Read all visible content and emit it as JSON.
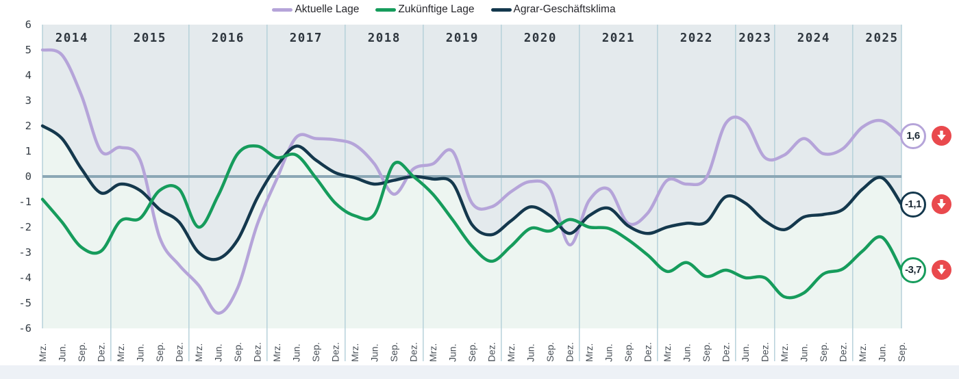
{
  "legend": {
    "items": [
      {
        "label": "Aktuelle Lage",
        "color": "#b5a4d9"
      },
      {
        "label": "Zukünftige Lage",
        "color": "#169c5c"
      },
      {
        "label": "Agrar-Geschäftsklima",
        "color": "#14384d"
      }
    ]
  },
  "chart_data": {
    "type": "line",
    "ylim": [
      -6,
      6
    ],
    "y_ticks": [
      6,
      5,
      4,
      3,
      2,
      1,
      0,
      -1,
      -2,
      -3,
      -4,
      -5,
      -6
    ],
    "x_groups": [
      {
        "year": "2014",
        "months": [
          "Mrz.",
          "Jun.",
          "Sep.",
          "Dez."
        ]
      },
      {
        "year": "2015",
        "months": [
          "Mrz.",
          "Jun.",
          "Sep.",
          "Dez."
        ]
      },
      {
        "year": "2016",
        "months": [
          "Mrz.",
          "Jun.",
          "Sep.",
          "Dez."
        ]
      },
      {
        "year": "2017",
        "months": [
          "Mrz.",
          "Jun.",
          "Sep.",
          "Dez."
        ]
      },
      {
        "year": "2018",
        "months": [
          "Mrz.",
          "Jun.",
          "Sep.",
          "Dez."
        ]
      },
      {
        "year": "2019",
        "months": [
          "Mrz.",
          "Jun.",
          "Sep.",
          "Dez."
        ]
      },
      {
        "year": "2020",
        "months": [
          "Mrz.",
          "Jun.",
          "Sep.",
          "Dez."
        ]
      },
      {
        "year": "2021",
        "months": [
          "Mrz.",
          "Jun.",
          "Sep.",
          "Dez."
        ]
      },
      {
        "year": "2022",
        "months": [
          "Mrz.",
          "Jun.",
          "Sep.",
          "Dez."
        ]
      },
      {
        "year": "2023",
        "months": [
          "Jun.",
          "Dez."
        ]
      },
      {
        "year": "2024",
        "months": [
          "Mrz.",
          "Jun.",
          "Sep.",
          "Dez."
        ]
      },
      {
        "year": "2025",
        "months": [
          "Mrz.",
          "Jun.",
          "Sep."
        ]
      }
    ],
    "series": [
      {
        "name": "Aktuelle Lage",
        "color": "#b5a4d9",
        "values": [
          5.0,
          4.8,
          3.2,
          1.0,
          1.15,
          0.65,
          -2.4,
          -3.5,
          -4.3,
          -5.4,
          -4.4,
          -1.9,
          -0.1,
          1.55,
          1.5,
          1.45,
          1.25,
          0.5,
          -0.7,
          0.3,
          0.5,
          1.0,
          -1.05,
          -1.2,
          -0.6,
          -0.2,
          -0.5,
          -2.7,
          -0.95,
          -0.5,
          -1.85,
          -1.45,
          -0.15,
          -0.3,
          -0.05,
          2.1,
          2.15,
          0.75,
          0.85,
          1.5,
          0.9,
          1.1,
          1.95,
          2.2,
          1.6
        ]
      },
      {
        "name": "Zukünftige Lage",
        "color": "#169c5c",
        "values": [
          -0.9,
          -1.8,
          -2.8,
          -2.95,
          -1.75,
          -1.65,
          -0.55,
          -0.5,
          -2.0,
          -0.75,
          0.9,
          1.2,
          0.75,
          0.85,
          -0.05,
          -1.05,
          -1.55,
          -1.5,
          0.5,
          0.0,
          -0.7,
          -1.7,
          -2.75,
          -3.35,
          -2.75,
          -2.05,
          -2.15,
          -1.7,
          -2.0,
          -2.05,
          -2.5,
          -3.1,
          -3.75,
          -3.4,
          -3.95,
          -3.7,
          -4.0,
          -4.0,
          -4.75,
          -4.6,
          -3.85,
          -3.65,
          -2.95,
          -2.4,
          -3.7
        ]
      },
      {
        "name": "Agrar-Geschäftsklima",
        "color": "#14384d",
        "values": [
          2.0,
          1.5,
          0.3,
          -0.65,
          -0.3,
          -0.55,
          -1.3,
          -1.8,
          -3.0,
          -3.25,
          -2.5,
          -0.85,
          0.4,
          1.2,
          0.65,
          0.15,
          -0.05,
          -0.3,
          -0.15,
          0.0,
          -0.1,
          -0.25,
          -1.9,
          -2.3,
          -1.75,
          -1.2,
          -1.55,
          -2.25,
          -1.55,
          -1.25,
          -1.95,
          -2.25,
          -2.0,
          -1.85,
          -1.8,
          -0.8,
          -1.05,
          -1.75,
          -2.1,
          -1.6,
          -1.5,
          -1.3,
          -0.5,
          -0.05,
          -1.1
        ]
      }
    ],
    "end_labels": [
      {
        "series": "Aktuelle Lage",
        "value": "1,6",
        "trend": "down"
      },
      {
        "series": "Agrar-Geschäftsklima",
        "value": "-1,1",
        "trend": "down"
      },
      {
        "series": "Zukünftige Lage",
        "value": "-3,7",
        "trend": "down"
      }
    ],
    "colors": {
      "zero_line": "#8ba7b5",
      "grid_line": "#b6d1da",
      "area_above": "#e4eaed",
      "area_below": "#edf5f1",
      "bottom_strip": "#edf1f6",
      "trend_icon": "#e9494d",
      "year_label": "#2e363e",
      "tick_label": "#474e56"
    }
  }
}
